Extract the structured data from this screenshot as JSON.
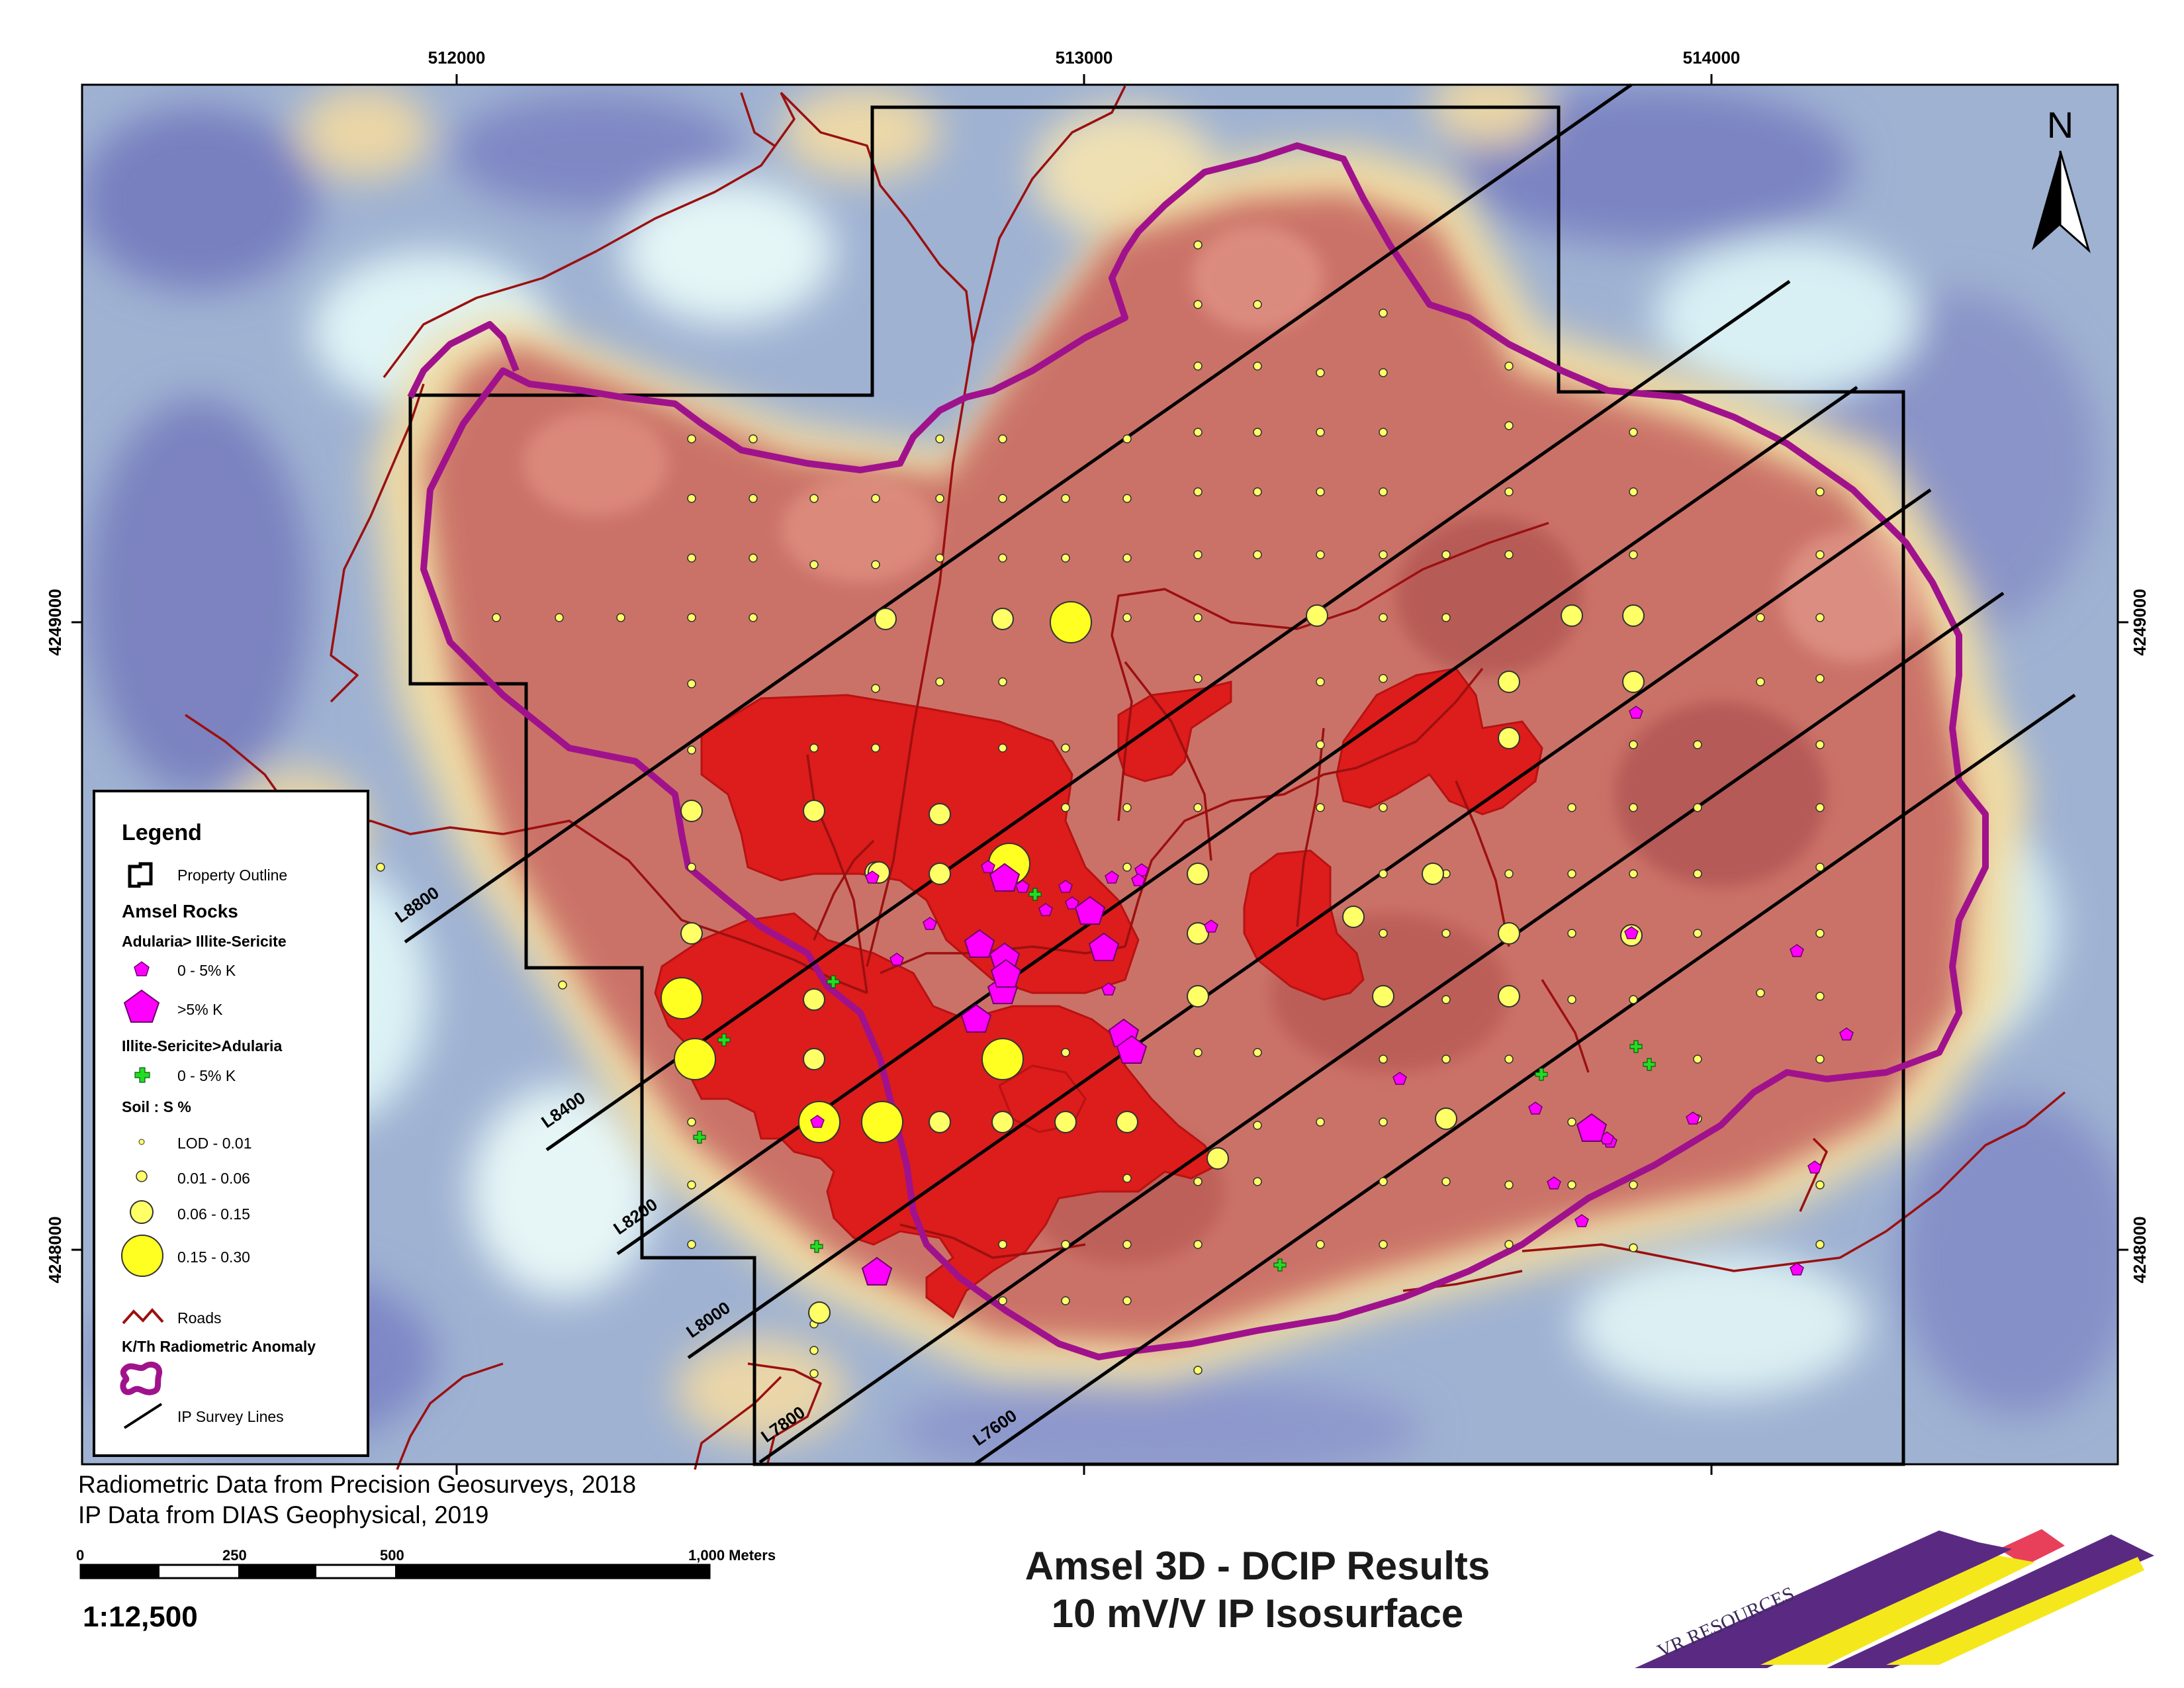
{
  "map": {
    "grid_x_labels": [
      "512000",
      "513000",
      "514000"
    ],
    "grid_y_labels": [
      "4249000",
      "4248000"
    ],
    "north_label": "N",
    "ip_lines": [
      "L8800",
      "L8400",
      "L8200",
      "L8000",
      "L7800",
      "L7600"
    ]
  },
  "legend": {
    "title": "Legend",
    "property_outline": "Property Outline",
    "amsel_rocks": "Amsel Rocks",
    "adularia_group": "Adularia> Illite-Sericite",
    "adularia_small": "0 - 5% K",
    "adularia_large": ">5% K",
    "illite_group": "Illite-Sericite>Adularia",
    "illite_small": "0 - 5% K",
    "soil_group": "Soil : S %",
    "soil_classes": [
      "LOD - 0.01",
      "0.01 - 0.06",
      "0.06 - 0.15",
      "0.15 - 0.30"
    ],
    "roads": "Roads",
    "anomaly": "K/Th Radiometric Anomaly",
    "ip_lines": "IP Survey Lines"
  },
  "credits": {
    "radiometric": "Radiometric Data from Precision Geosurveys, 2018",
    "ip": "IP Data from DIAS Geophysical, 2019"
  },
  "scale_bar": {
    "labels": [
      "0",
      "250",
      "500",
      "1,000 Meters"
    ],
    "ratio": "1:12,500"
  },
  "title": {
    "line1": "Amsel 3D - DCIP Results",
    "line2": "10 mV/V IP Isosurface"
  },
  "logo": {
    "text": "VR RESOURCES",
    "colors": [
      "#5a2a82",
      "#f4e81c",
      "#e8405a"
    ]
  },
  "colors": {
    "ip_isosurface": "#dd1c1c",
    "anomaly_outline": "#a0128c",
    "roads": "#9b1010",
    "soil": "#ffff33",
    "adularia": "#ff00ff",
    "illite": "#22cc22"
  }
}
